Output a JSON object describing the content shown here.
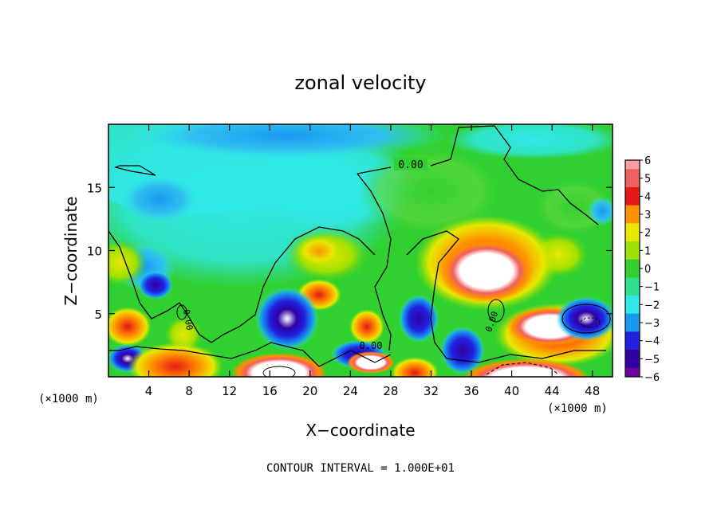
{
  "chart_data": {
    "type": "heatmap",
    "title": "zonal velocity",
    "xlabel": "X−coordinate",
    "ylabel": "Z−coordinate",
    "x_unit_left": "(×1000 m)",
    "x_unit_right": "(×1000 m)",
    "xlim": [
      0,
      50
    ],
    "ylim": [
      0,
      20
    ],
    "x_ticks": [
      4,
      8,
      12,
      16,
      20,
      24,
      28,
      32,
      36,
      40,
      44,
      48
    ],
    "y_ticks": [
      5,
      10,
      15
    ],
    "colorbar": {
      "levels": [
        6,
        5,
        4,
        3,
        2,
        1,
        0,
        -1,
        -2,
        -3,
        -4,
        -5,
        -6
      ],
      "labels": [
        "6",
        "5",
        "4",
        "3",
        "2",
        "1",
        "0",
        "−1",
        "−2",
        "−3",
        "−4",
        "−5",
        "−6"
      ],
      "colors": [
        "#f4a0a0",
        "#f06060",
        "#e81818",
        "#ff9000",
        "#e8e800",
        "#a0e000",
        "#30d030",
        "#30e090",
        "#30e8e8",
        "#1898f0",
        "#2020e0",
        "#3000a0",
        "#7000a0"
      ]
    },
    "contour_label": "0.00",
    "contour_interval": "CONTOUR INTERVAL = 1.000E+01",
    "grid": false,
    "legend": "colorbar-right"
  }
}
